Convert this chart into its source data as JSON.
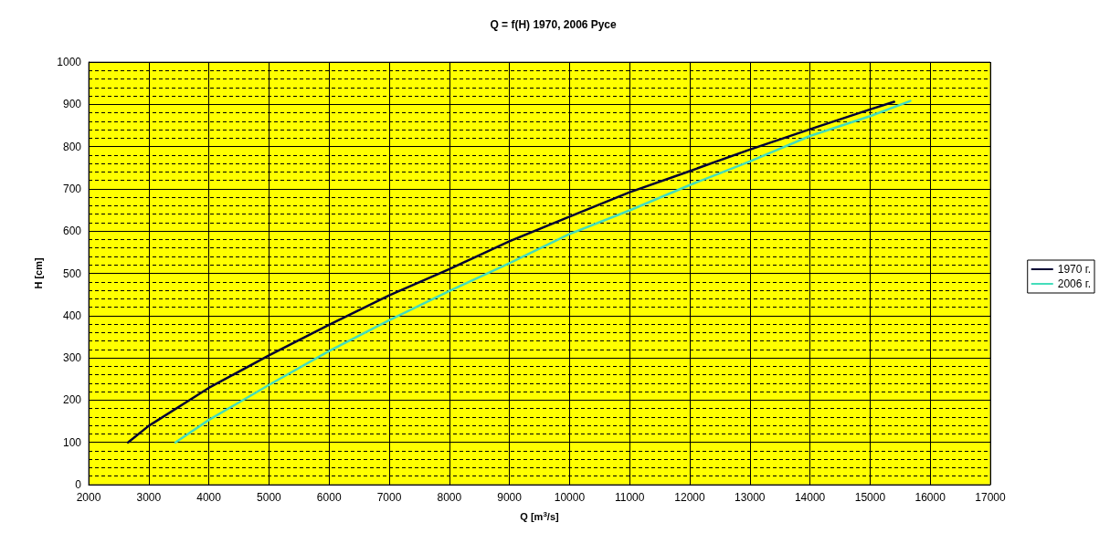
{
  "chart_data": {
    "type": "line",
    "title": "Q = f(H) 1970, 2006 Русе",
    "xlabel": "Q [m$^{3}$/s]",
    "ylabel": "H [cm]",
    "xlim": [
      2000,
      17000
    ],
    "xticks": [
      2000,
      3000,
      4000,
      5000,
      6000,
      7000,
      8000,
      9000,
      10000,
      11000,
      12000,
      13000,
      14000,
      15000,
      16000,
      17000
    ],
    "ylim": [
      0,
      1000
    ],
    "yticks": [
      0,
      100,
      200,
      300,
      400,
      500,
      600,
      700,
      800,
      900,
      1000
    ],
    "grid": true,
    "legend": "right",
    "marker": "none",
    "line_style": "solid",
    "series": [
      {
        "name": "1970 г.",
        "color": "#000033",
        "x": [
          2656,
          3000,
          4000,
          5000,
          6000,
          7000,
          8000,
          9000,
          10000,
          11000,
          12000,
          13000,
          14000,
          15000,
          15400
        ],
        "values": [
          100,
          139,
          229,
          306,
          378,
          448,
          510,
          576,
          634,
          692,
          742,
          793,
          841,
          888,
          906
        ]
      },
      {
        "name": "2006 г.",
        "color": "#44ddbb",
        "x": [
          3445,
          4000,
          5000,
          6000,
          7000,
          8000,
          9000,
          10000,
          11000,
          12000,
          13000,
          14000,
          15000,
          15670
        ],
        "values": [
          100,
          153,
          236,
          316,
          389,
          458,
          524,
          593,
          649,
          709,
          765,
          825,
          872,
          908
        ]
      }
    ]
  }
}
